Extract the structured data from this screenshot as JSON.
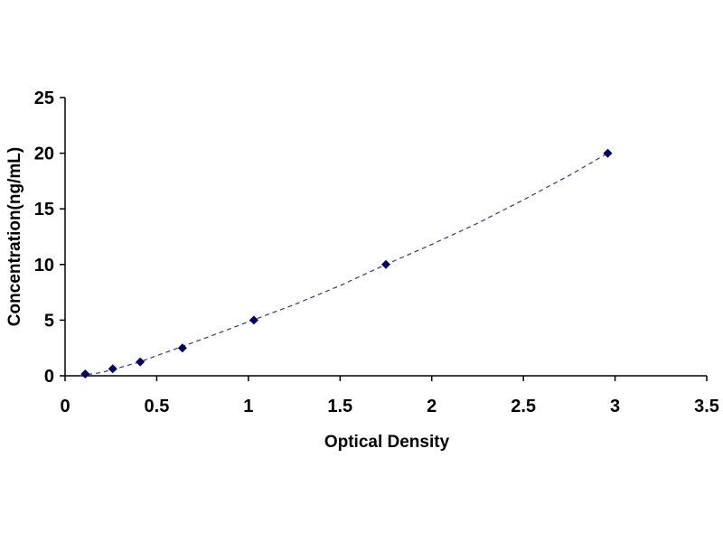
{
  "chart_data": {
    "type": "scatter",
    "title": "",
    "xlabel": "Optical Density",
    "ylabel": "Concentration(ng/mL)",
    "xlim": [
      0,
      3.5
    ],
    "ylim": [
      0,
      25
    ],
    "x_ticks": [
      0,
      0.5,
      1,
      1.5,
      2,
      2.5,
      3,
      3.5
    ],
    "x_tick_labels": [
      "0",
      "0.5",
      "1",
      "1.5",
      "2",
      "2.5",
      "3",
      "3.5"
    ],
    "y_ticks": [
      0,
      5,
      10,
      15,
      20,
      25
    ],
    "y_tick_labels": [
      "0",
      "5",
      "10",
      "15",
      "20",
      "25"
    ],
    "grid": false,
    "legend": "none",
    "series": [
      {
        "x": [
          0.11,
          0.26,
          0.41,
          0.64,
          1.03,
          1.75,
          2.96
        ],
        "y": [
          0.16,
          0.63,
          1.25,
          2.5,
          5,
          10,
          20
        ]
      }
    ],
    "trendline": {
      "x": [
        0.08,
        0.2,
        0.4,
        0.6,
        0.8,
        1.0,
        1.25,
        1.5,
        1.75,
        2.0,
        2.25,
        2.5,
        2.75,
        2.96
      ],
      "y": [
        0.0,
        0.3,
        1.2,
        2.4,
        3.6,
        4.85,
        6.4,
        8.1,
        10.0,
        11.8,
        13.7,
        15.8,
        18.0,
        20.0
      ]
    },
    "colors": {
      "marker": "#000066",
      "line": "#333399",
      "axis": "#000000"
    }
  }
}
